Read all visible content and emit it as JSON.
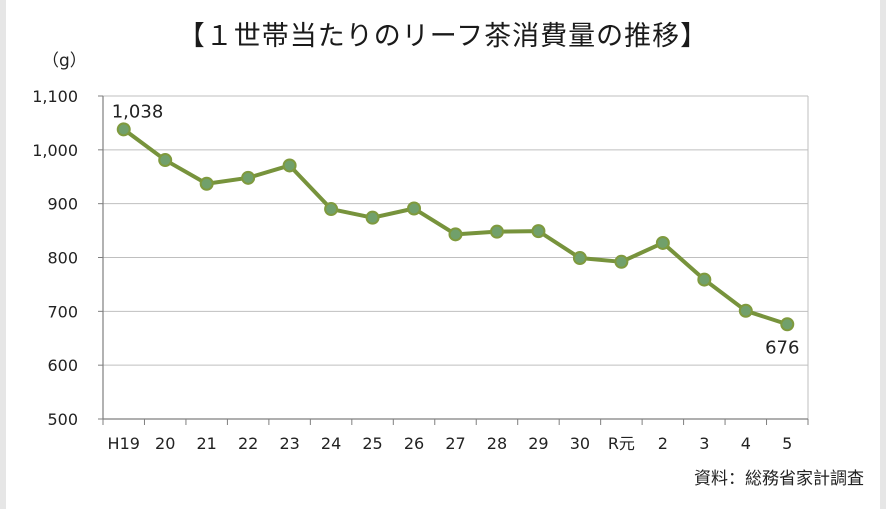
{
  "title": "【１世帯当たりのリーフ茶消費量の推移】",
  "unit_label": "（g）",
  "source": "資料：総務省家計調査",
  "colors": {
    "line": "#77933c",
    "marker_fill": "#71a06b",
    "marker_stroke": "#7f9a3e",
    "grid": "#bfbfbf",
    "axis": "#7f7f7f"
  },
  "chart_data": {
    "type": "line",
    "title": "【１世帯当たりのリーフ茶消費量の推移】",
    "ylabel": "（g）",
    "xlabel": "",
    "ylim": [
      500,
      1100
    ],
    "yticks": [
      500,
      600,
      700,
      800,
      900,
      1000,
      1100
    ],
    "ytick_labels": [
      "500",
      "600",
      "700",
      "800",
      "900",
      "1,000",
      "1,100"
    ],
    "categories": [
      "H19",
      "20",
      "21",
      "22",
      "23",
      "24",
      "25",
      "26",
      "27",
      "28",
      "29",
      "30",
      "R元",
      "2",
      "3",
      "4",
      "5"
    ],
    "series": [
      {
        "values": [
          1038,
          981,
          937,
          948,
          971,
          890,
          874,
          891,
          843,
          848,
          849,
          799,
          792,
          827,
          759,
          701,
          676
        ]
      }
    ],
    "data_labels": [
      {
        "index": 0,
        "text": "1,038",
        "position": "above"
      },
      {
        "index": 16,
        "text": "676",
        "position": "below"
      }
    ],
    "grid": true,
    "legend": "none"
  }
}
